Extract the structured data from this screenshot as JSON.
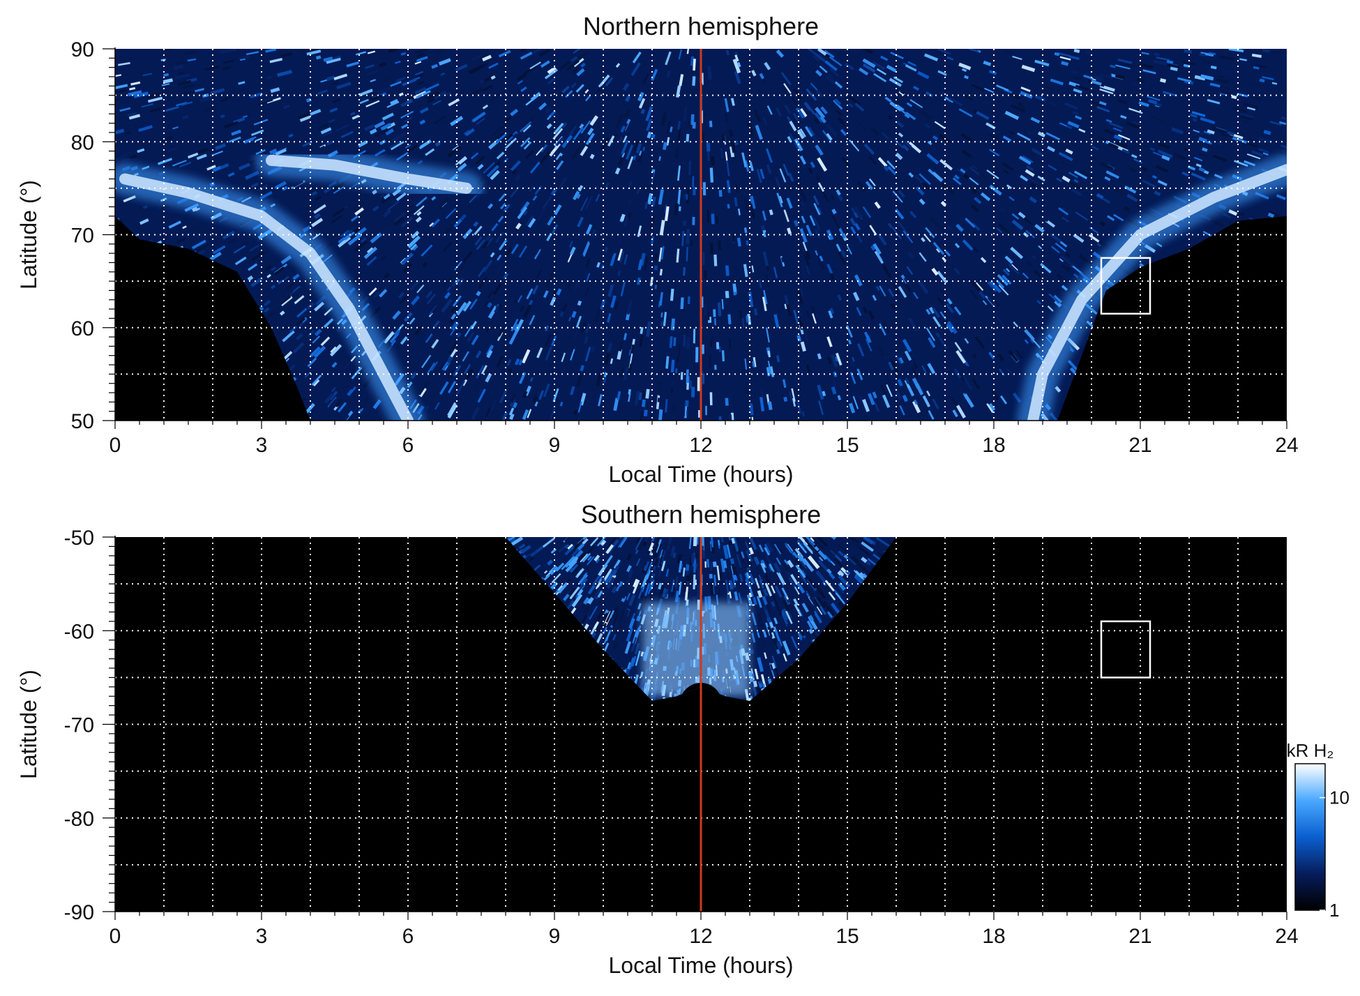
{
  "chart_data": [
    {
      "type": "heatmap",
      "title": "Northern hemisphere",
      "xlabel": "Local Time (hours)",
      "ylabel": "Latitude (°)",
      "xlim": [
        0,
        24
      ],
      "ylim": [
        50,
        90
      ],
      "xticks": [
        0,
        3,
        6,
        9,
        12,
        15,
        18,
        21,
        24
      ],
      "xtick_labels": [
        "0",
        "3",
        "6",
        "9",
        "12",
        "15",
        "18",
        "21",
        "24"
      ],
      "yticks": [
        50,
        60,
        70,
        80,
        90
      ],
      "ytick_labels": [
        "50",
        "60",
        "70",
        "80",
        "90"
      ],
      "grid": true,
      "grid_x_step": 1,
      "grid_y_step": 5,
      "colormap": [
        "#000000",
        "#061d5c",
        "#0a5fcf",
        "#4aa8ff",
        "#ffffff"
      ],
      "coverage_boundary": [
        {
          "lt": 0,
          "lat": 72
        },
        {
          "lt": 0.5,
          "lat": 69.5
        },
        {
          "lt": 1.5,
          "lat": 68.5
        },
        {
          "lt": 2.5,
          "lat": 66
        },
        {
          "lt": 3.2,
          "lat": 60
        },
        {
          "lt": 3.7,
          "lat": 54
        },
        {
          "lt": 4,
          "lat": 50
        },
        {
          "lt": 19.3,
          "lat": 50
        },
        {
          "lt": 19.8,
          "lat": 57
        },
        {
          "lt": 20.3,
          "lat": 64
        },
        {
          "lt": 21,
          "lat": 66.5
        },
        {
          "lt": 22,
          "lat": 68.5
        },
        {
          "lt": 23,
          "lat": 71.5
        },
        {
          "lt": 24,
          "lat": 72
        }
      ],
      "features": [
        {
          "kind": "bright-arc",
          "points": [
            {
              "lt": 0.2,
              "lat": 76
            },
            {
              "lt": 1.5,
              "lat": 74.5
            },
            {
              "lt": 3,
              "lat": 72
            },
            {
              "lt": 4,
              "lat": 68
            },
            {
              "lt": 4.8,
              "lat": 62
            },
            {
              "lt": 5.5,
              "lat": 55
            },
            {
              "lt": 6,
              "lat": 50
            }
          ]
        },
        {
          "kind": "bright-arc",
          "points": [
            {
              "lt": 3.2,
              "lat": 78
            },
            {
              "lt": 4.5,
              "lat": 77.5
            },
            {
              "lt": 6,
              "lat": 76
            },
            {
              "lt": 7.2,
              "lat": 75
            }
          ]
        },
        {
          "kind": "bright-arc",
          "points": [
            {
              "lt": 24,
              "lat": 77
            },
            {
              "lt": 22.5,
              "lat": 74
            },
            {
              "lt": 21,
              "lat": 70
            },
            {
              "lt": 19.8,
              "lat": 63
            },
            {
              "lt": 19,
              "lat": 55
            },
            {
              "lt": 18.8,
              "lat": 50
            }
          ]
        }
      ],
      "marker_line": {
        "lt": 12,
        "color": "#d03a1a"
      },
      "box": {
        "lt": [
          20.2,
          21.2
        ],
        "lat": [
          61.5,
          67.5
        ]
      }
    },
    {
      "type": "heatmap",
      "title": "Southern hemisphere",
      "xlabel": "Local Time (hours)",
      "ylabel": "Latitude (°)",
      "xlim": [
        0,
        24
      ],
      "ylim": [
        -90,
        -50
      ],
      "xticks": [
        0,
        3,
        6,
        9,
        12,
        15,
        18,
        21,
        24
      ],
      "xtick_labels": [
        "0",
        "3",
        "6",
        "9",
        "12",
        "15",
        "18",
        "21",
        "24"
      ],
      "yticks": [
        -90,
        -80,
        -70,
        -60,
        -50
      ],
      "ytick_labels": [
        "-90",
        "-80",
        "-70",
        "-60",
        "-50"
      ],
      "grid": true,
      "grid_x_step": 1,
      "grid_y_step": 5,
      "colormap": [
        "#000000",
        "#061d5c",
        "#0a5fcf",
        "#4aa8ff",
        "#ffffff"
      ],
      "coverage_boundary": [
        {
          "lt": 8,
          "lat": -50
        },
        {
          "lt": 9,
          "lat": -56
        },
        {
          "lt": 10,
          "lat": -62
        },
        {
          "lt": 11,
          "lat": -67.5
        },
        {
          "lt": 11.5,
          "lat": -67
        },
        {
          "lt": 12,
          "lat": -66
        },
        {
          "lt": 12.5,
          "lat": -67
        },
        {
          "lt": 13,
          "lat": -67.5
        },
        {
          "lt": 14,
          "lat": -63
        },
        {
          "lt": 15,
          "lat": -57
        },
        {
          "lt": 16,
          "lat": -50
        }
      ],
      "features": [
        {
          "kind": "bright-region",
          "lt": [
            10.8,
            13.0
          ],
          "lat": [
            -67,
            -57
          ]
        }
      ],
      "marker_line": {
        "lt": 12,
        "color": "#d03a1a"
      },
      "box": {
        "lt": [
          20.2,
          21.2
        ],
        "lat": [
          -65,
          -59
        ]
      }
    }
  ],
  "colorbar": {
    "label": "kR H₂",
    "scale": "log",
    "range": [
      1,
      20
    ],
    "ticks": [
      1,
      10
    ],
    "tick_labels": [
      "1",
      "10"
    ],
    "colors": [
      "#000000",
      "#061d5c",
      "#0a5fcf",
      "#4aa8ff",
      "#ffffff"
    ]
  }
}
